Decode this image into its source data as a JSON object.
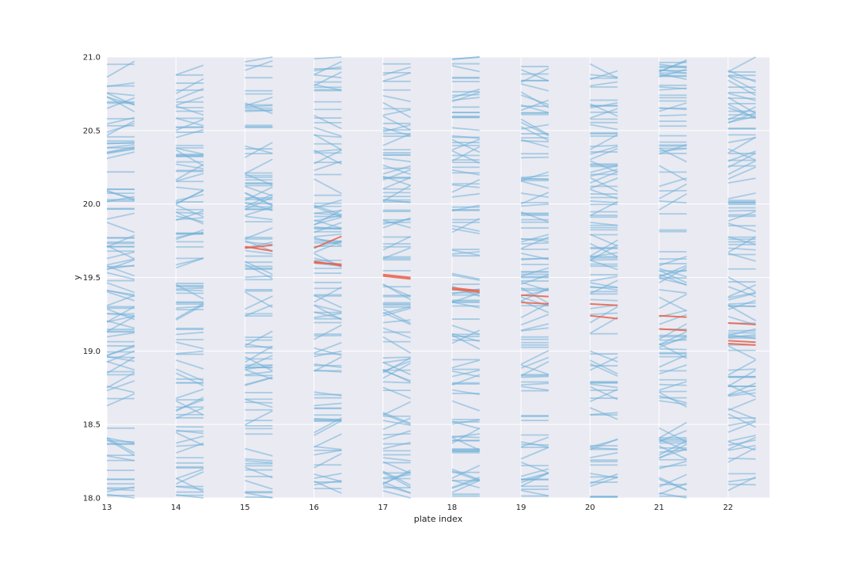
{
  "chart_data": {
    "type": "line",
    "title": "",
    "xlabel": "plate index",
    "ylabel": "y",
    "xlim": [
      13,
      22.6
    ],
    "ylim": [
      18.0,
      21.0
    ],
    "x_ticks": [
      "13",
      "14",
      "15",
      "16",
      "17",
      "18",
      "19",
      "20",
      "21",
      "22"
    ],
    "y_ticks": [
      "18.0",
      "18.5",
      "19.0",
      "19.5",
      "20.0",
      "20.5",
      "21.0"
    ],
    "grid": true,
    "background": "#eaeaf2",
    "segment_width": 0.4,
    "colors": {
      "background_segments": "#6fb0d8",
      "highlight_segments": "#e8604a"
    },
    "series": [
      {
        "kind": "background",
        "segments_per_plate": 110,
        "segments": []
      },
      {
        "kind": "highlight",
        "segments": [
          {
            "plate": 15,
            "y_start": 19.7,
            "y_end": 19.72
          },
          {
            "plate": 15,
            "y_start": 19.71,
            "y_end": 19.68
          },
          {
            "plate": 16,
            "y_start": 19.61,
            "y_end": 19.58
          },
          {
            "plate": 16,
            "y_start": 19.6,
            "y_end": 19.59
          },
          {
            "plate": 16,
            "y_start": 19.7,
            "y_end": 19.78
          },
          {
            "plate": 17,
            "y_start": 19.52,
            "y_end": 19.5
          },
          {
            "plate": 17,
            "y_start": 19.51,
            "y_end": 19.49
          },
          {
            "plate": 18,
            "y_start": 19.43,
            "y_end": 19.41
          },
          {
            "plate": 18,
            "y_start": 19.42,
            "y_end": 19.4
          },
          {
            "plate": 19,
            "y_start": 19.38,
            "y_end": 19.37
          },
          {
            "plate": 19,
            "y_start": 19.33,
            "y_end": 19.32
          },
          {
            "plate": 20,
            "y_start": 19.32,
            "y_end": 19.31
          },
          {
            "plate": 20,
            "y_start": 19.24,
            "y_end": 19.22
          },
          {
            "plate": 21,
            "y_start": 19.24,
            "y_end": 19.23
          },
          {
            "plate": 21,
            "y_start": 19.15,
            "y_end": 19.14
          },
          {
            "plate": 22,
            "y_start": 19.19,
            "y_end": 19.18
          },
          {
            "plate": 22,
            "y_start": 19.07,
            "y_end": 19.06
          },
          {
            "plate": 22,
            "y_start": 19.05,
            "y_end": 19.04
          }
        ]
      }
    ]
  }
}
